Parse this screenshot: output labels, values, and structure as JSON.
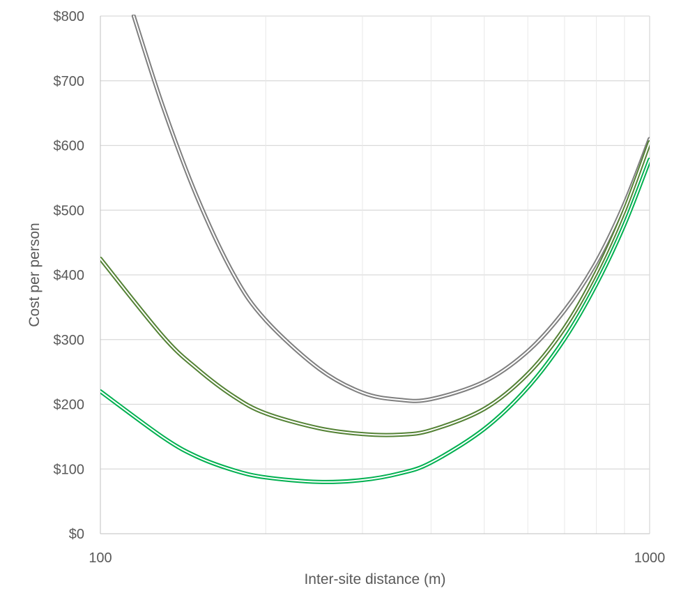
{
  "chart_data": {
    "type": "line",
    "title": "",
    "xlabel": "Inter-site distance (m)",
    "ylabel": "Cost per person",
    "x_scale": "log",
    "xlim": [
      100,
      1000
    ],
    "ylim": [
      0,
      800
    ],
    "x_tick_labels": [
      "100",
      "1000"
    ],
    "y_tick_labels": [
      "$0",
      "$100",
      "$200",
      "$300",
      "$400",
      "$500",
      "$600",
      "$700",
      "$800"
    ],
    "y_ticks": [
      0,
      100,
      200,
      300,
      400,
      500,
      600,
      700,
      800
    ],
    "grid": true,
    "legend": "none",
    "series": [
      {
        "color": "#7f7f7f",
        "x": [
          115,
          130,
          150,
          175,
          200,
          250,
          300,
          350,
          400,
          500,
          600,
          700,
          800,
          900,
          1000
        ],
        "y": [
          800,
          660,
          520,
          400,
          330,
          255,
          218,
          207,
          208,
          235,
          282,
          345,
          420,
          510,
          610
        ]
      },
      {
        "color": "#548235",
        "x": [
          100,
          130,
          150,
          175,
          200,
          250,
          300,
          350,
          400,
          500,
          600,
          700,
          800,
          900,
          1000
        ],
        "y": [
          425,
          305,
          255,
          212,
          186,
          163,
          154,
          153,
          160,
          193,
          247,
          318,
          404,
          500,
          605
        ]
      },
      {
        "color": "#00b050",
        "x": [
          100,
          130,
          150,
          175,
          200,
          250,
          300,
          350,
          400,
          500,
          600,
          700,
          800,
          900,
          1000
        ],
        "y": [
          220,
          149,
          119,
          98,
          87,
          80,
          83,
          93,
          110,
          162,
          226,
          301,
          386,
          478,
          578
        ]
      }
    ]
  }
}
